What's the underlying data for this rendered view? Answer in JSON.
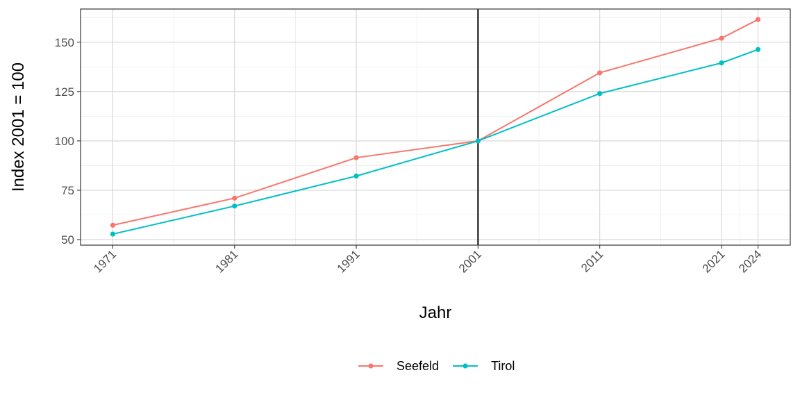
{
  "chart_data": {
    "type": "line",
    "title": "",
    "xlabel": "Jahr",
    "ylabel": "Index 2001 = 100",
    "x": [
      1971,
      1981,
      1991,
      2001,
      2011,
      2021,
      2024
    ],
    "x_tick_labels": [
      "1971",
      "1981",
      "1991",
      "2001",
      "2011",
      "2021",
      "2024"
    ],
    "xlim": [
      1968.35,
      2026.65
    ],
    "ylim": [
      47.2,
      166.8
    ],
    "y_ticks": [
      50,
      75,
      100,
      125,
      150
    ],
    "y_tick_labels": [
      "50",
      "75",
      "100",
      "125",
      "150"
    ],
    "reference_line_x": 2001,
    "grid": true,
    "legend_position": "bottom",
    "series": [
      {
        "name": "Seefeld",
        "color": "#F8766D",
        "values": [
          57.3,
          71.0,
          91.5,
          100.0,
          134.5,
          152.0,
          161.5
        ]
      },
      {
        "name": "Tirol",
        "color": "#00BFC4",
        "values": [
          52.8,
          67.0,
          82.2,
          100.0,
          124.0,
          139.5,
          146.3
        ]
      }
    ]
  }
}
